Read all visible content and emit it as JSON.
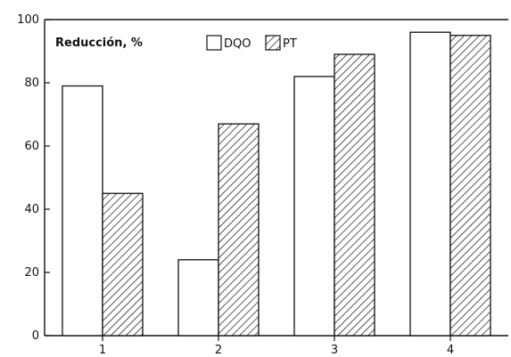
{
  "chart_data": {
    "type": "bar",
    "title": "",
    "xlabel": "",
    "ylabel": "Reducción, %",
    "categories": [
      "1",
      "2",
      "3",
      "4"
    ],
    "series": [
      {
        "name": "DQO",
        "pattern": "none",
        "values": [
          79,
          24,
          82,
          96
        ]
      },
      {
        "name": "PT",
        "pattern": "hatch",
        "values": [
          45,
          67,
          89,
          95
        ]
      }
    ],
    "ylim": [
      0,
      100
    ],
    "yticks": [
      "0",
      "20",
      "40",
      "60",
      "80",
      "100"
    ],
    "grid": false,
    "legend_position": "top-center",
    "colors": {
      "bar_fill": "#ffffff",
      "stroke": "#111111",
      "hatch": "#111111"
    }
  }
}
